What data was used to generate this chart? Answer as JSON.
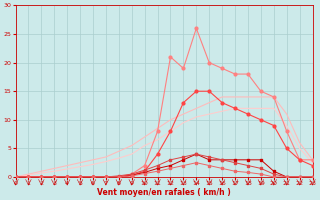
{
  "x": [
    0,
    1,
    2,
    3,
    4,
    5,
    6,
    7,
    8,
    9,
    10,
    11,
    12,
    13,
    14,
    15,
    16,
    17,
    18,
    19,
    20,
    21,
    22,
    23
  ],
  "rafales": [
    0,
    0,
    0,
    0,
    0,
    0,
    0,
    0,
    0,
    0.5,
    2,
    8,
    21,
    19,
    26,
    20,
    19,
    18,
    18,
    15,
    14,
    8,
    3,
    3
  ],
  "moyen": [
    0,
    0,
    0,
    0,
    0,
    0,
    0,
    0,
    0,
    0.3,
    1,
    4,
    8,
    13,
    15,
    15,
    13,
    12,
    11,
    10,
    9,
    5,
    3,
    2
  ],
  "trend1": [
    0,
    0.5,
    1.0,
    1.5,
    2.0,
    2.5,
    3.0,
    3.5,
    4.5,
    5.5,
    7,
    8.5,
    10,
    11,
    12,
    13,
    14,
    14,
    14,
    14,
    14,
    11,
    6,
    3
  ],
  "trend2": [
    0,
    0.3,
    0.7,
    1.0,
    1.4,
    1.8,
    2.2,
    2.7,
    3.3,
    4,
    5.5,
    6.5,
    8,
    9.5,
    10.5,
    11,
    11.5,
    12,
    12,
    12,
    12,
    9,
    5,
    2.5
  ],
  "small1": [
    0,
    0,
    0,
    0,
    0,
    0,
    0,
    0,
    0,
    0.3,
    0.8,
    1.5,
    2,
    3,
    4,
    3,
    3,
    3,
    3,
    3,
    1,
    0,
    0,
    0
  ],
  "small2": [
    0,
    0,
    0,
    0,
    0,
    0,
    0,
    0,
    0.2,
    0.5,
    1.2,
    2,
    3,
    3.5,
    4,
    3.5,
    3,
    2.5,
    2,
    1.5,
    0.5,
    0,
    0,
    0
  ],
  "small3": [
    0,
    0,
    0,
    0,
    0,
    0,
    0,
    0,
    0,
    0.2,
    0.6,
    1,
    1.5,
    2,
    2.5,
    2,
    1.5,
    1,
    0.8,
    0.5,
    0,
    0,
    0,
    0
  ],
  "bg_color": "#cceaea",
  "grid_color": "#aacece",
  "col_rafales": "#ff8080",
  "col_moyen": "#ff4444",
  "col_trend1": "#ffbbbb",
  "col_trend2": "#ffcccc",
  "col_small1": "#cc0000",
  "col_small2": "#dd4444",
  "col_small3": "#ee6666",
  "xlabel": "Vent moyen/en rafales ( km/h )",
  "ylim": [
    0,
    30
  ],
  "xlim": [
    0,
    23
  ],
  "yticks": [
    0,
    5,
    10,
    15,
    20,
    25,
    30
  ],
  "xticks": [
    0,
    1,
    2,
    3,
    4,
    5,
    6,
    7,
    8,
    9,
    10,
    11,
    12,
    13,
    14,
    15,
    16,
    17,
    18,
    19,
    20,
    21,
    22,
    23
  ],
  "axis_color": "#cc0000",
  "label_color": "#cc0000"
}
